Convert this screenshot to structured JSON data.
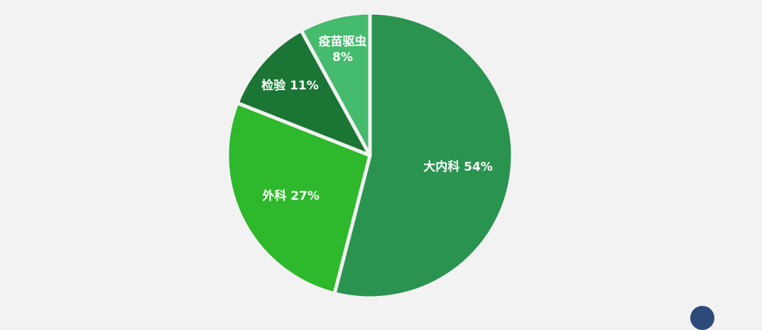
{
  "chart_data": {
    "type": "pie",
    "title": "",
    "start_angle_deg": 0,
    "direction": "clockwise",
    "slices": [
      {
        "name": "大内科",
        "value": 54,
        "display": "大内科 54%",
        "color": "#2a9350"
      },
      {
        "name": "外科",
        "value": 27,
        "display": "外科 27%",
        "color": "#2eb82b"
      },
      {
        "name": "检验",
        "value": 11,
        "display": "检验 11%",
        "color": "#1b7534"
      },
      {
        "name": "疫苗驱虫",
        "value": 8,
        "display": "疫苗驱虫\n8%",
        "color": "#45bb6d"
      }
    ],
    "slice_border_color": "#f2f2f2"
  }
}
